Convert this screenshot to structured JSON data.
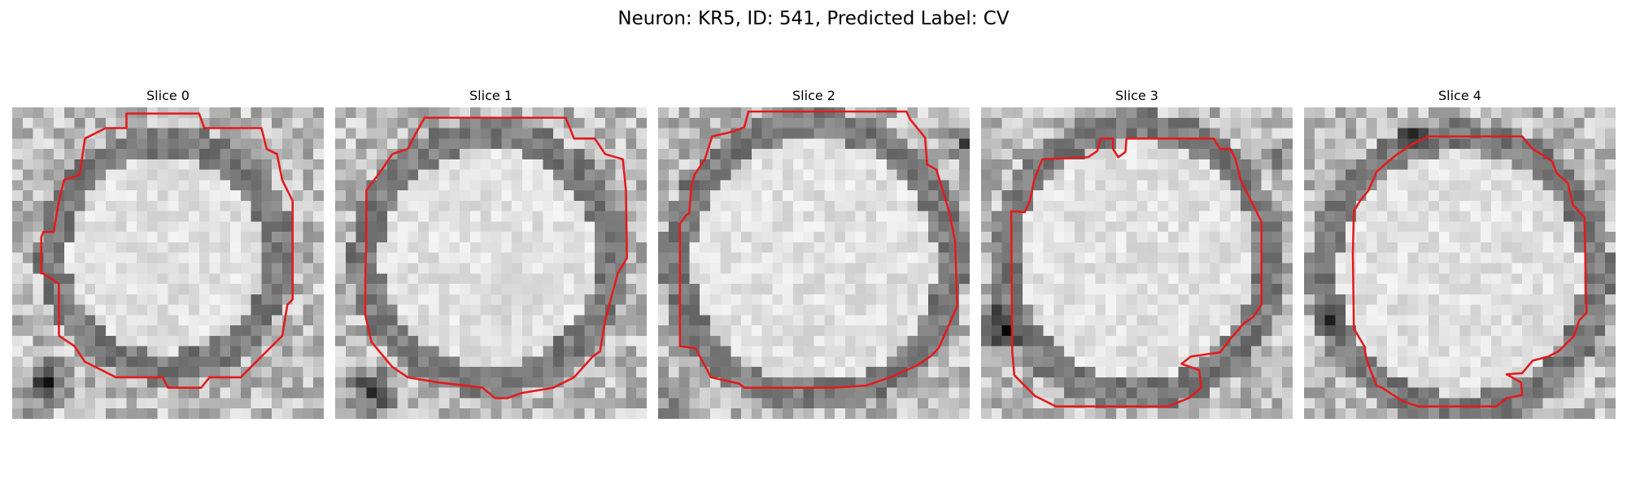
{
  "figure": {
    "title": "Neuron: KR5, ID: 541, Predicted Label: CV",
    "contour_color": "#e41a1c"
  },
  "panels": [
    {
      "title": "Slice 0"
    },
    {
      "title": "Slice 1"
    },
    {
      "title": "Slice 2"
    },
    {
      "title": "Slice 3"
    },
    {
      "title": "Slice 4"
    }
  ]
}
